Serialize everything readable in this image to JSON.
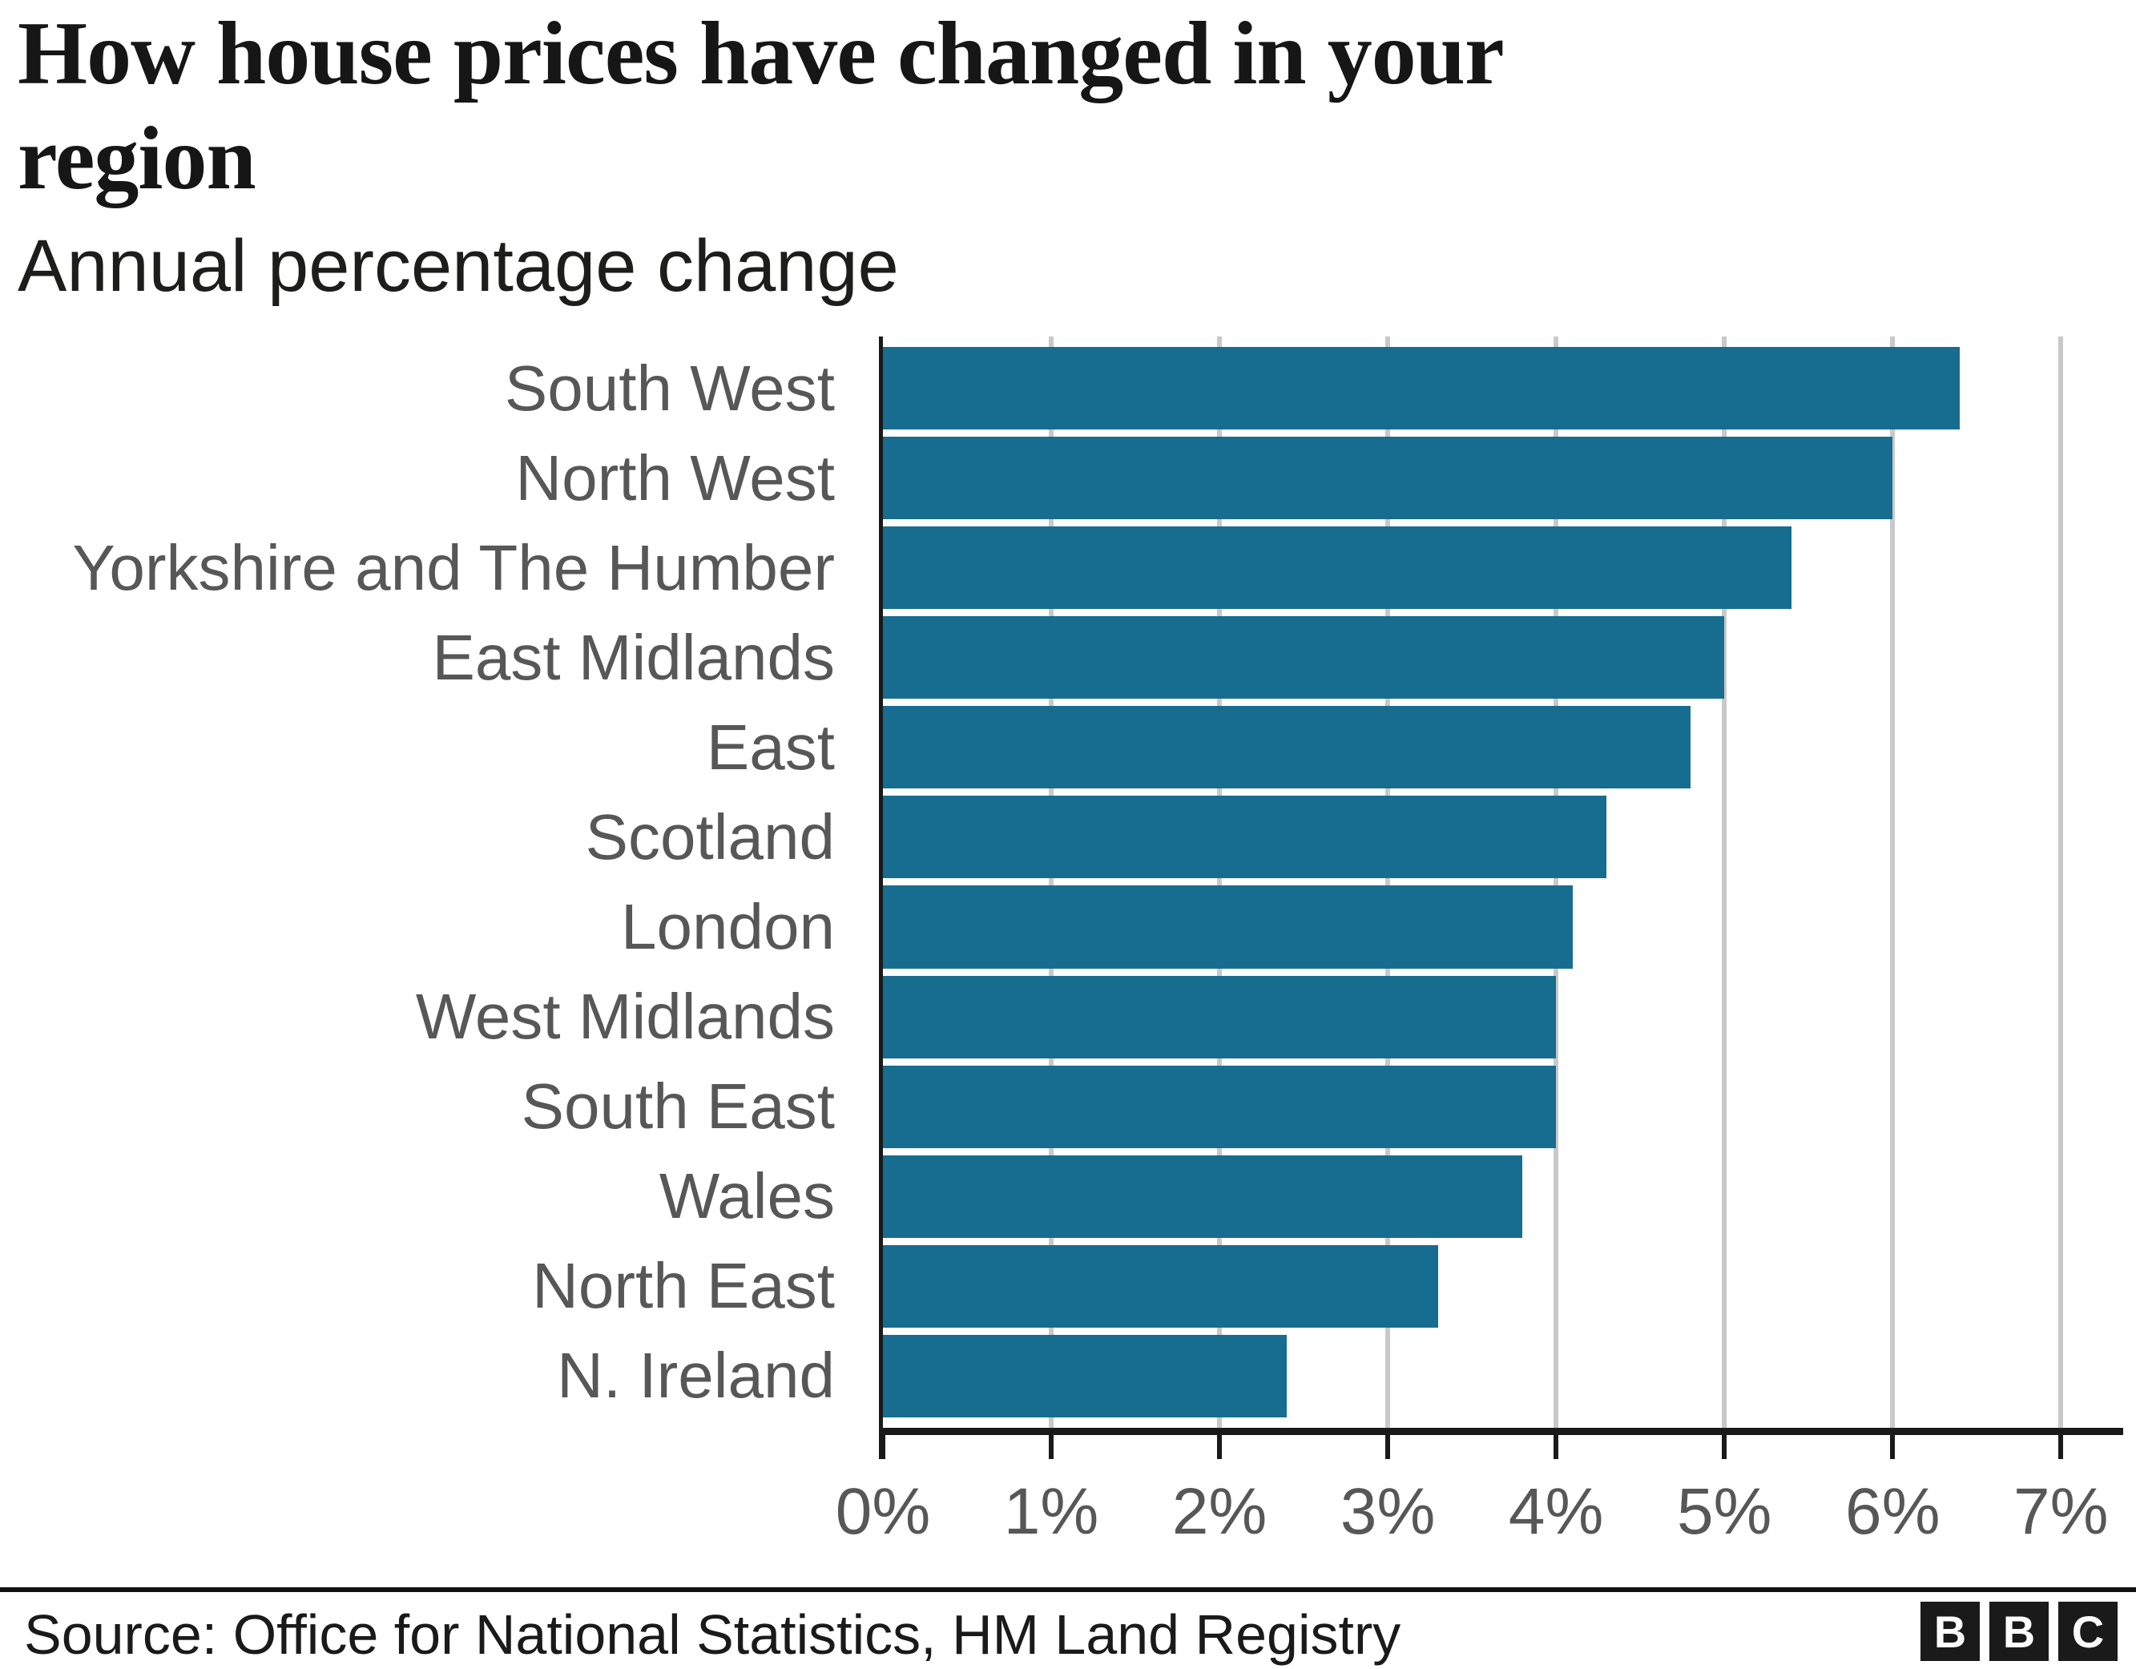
{
  "header": {
    "title_lines": [
      "How house prices have changed in your",
      "region"
    ],
    "subtitle": "Annual percentage change"
  },
  "chart_data": {
    "type": "bar",
    "orientation": "horizontal",
    "title": "How house prices have changed in your region",
    "subtitle": "Annual percentage change",
    "categories": [
      "South West",
      "North West",
      "Yorkshire and The Humber",
      "East Midlands",
      "East",
      "Scotland",
      "London",
      "West Midlands",
      "South East",
      "Wales",
      "North East",
      "N. Ireland"
    ],
    "values": [
      6.4,
      6.0,
      5.4,
      5.0,
      4.8,
      4.3,
      4.1,
      4.0,
      4.0,
      3.8,
      3.3,
      2.4
    ],
    "unit": "%",
    "xlabel": "",
    "ylabel": "",
    "x_ticks": [
      "0%",
      "1%",
      "2%",
      "3%",
      "4%",
      "5%",
      "6%",
      "7%"
    ],
    "x_tick_values": [
      0,
      1,
      2,
      3,
      4,
      5,
      6,
      7
    ],
    "xlim": [
      0,
      7.37
    ],
    "grid": "vertical-gridlines-on",
    "legend": "none",
    "bar_color": "#176d90",
    "gridline_color": "#c9c9c9",
    "axis_color": "#1a1a1a",
    "label_color": "#575757"
  },
  "footer": {
    "source": "Source: Office for National Statistics, HM Land Registry",
    "logo_letters": [
      "B",
      "B",
      "C"
    ]
  }
}
